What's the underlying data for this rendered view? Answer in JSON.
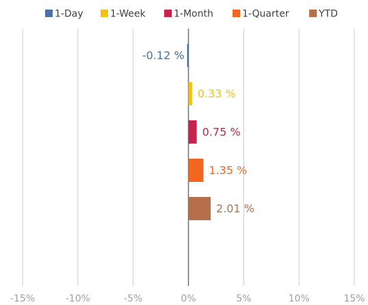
{
  "chart_data": {
    "type": "bar",
    "orientation": "horizontal",
    "series": [
      {
        "name": "1-Day",
        "color": "#4a70a8",
        "values": [
          -0.12
        ],
        "value_labels": [
          "-0.12 %"
        ]
      },
      {
        "name": "1-Week",
        "color": "#f5c212",
        "values": [
          0.33
        ],
        "value_labels": [
          "0.33 %"
        ]
      },
      {
        "name": "1-Month",
        "color": "#c8234f",
        "values": [
          0.75
        ],
        "value_labels": [
          "0.75 %"
        ]
      },
      {
        "name": "1-Quarter",
        "color": "#f2661f",
        "values": [
          1.35
        ],
        "value_labels": [
          "1.35 %"
        ]
      },
      {
        "name": "YTD",
        "color": "#b5704b",
        "values": [
          2.01
        ],
        "value_labels": [
          "2.01 %"
        ]
      }
    ],
    "xlim": [
      -15,
      15
    ],
    "xticks": [
      {
        "value": -15,
        "label": "-15%"
      },
      {
        "value": -10,
        "label": "-10%"
      },
      {
        "value": -5,
        "label": "-5%"
      },
      {
        "value": 0,
        "label": "0%"
      },
      {
        "value": 5,
        "label": "5%"
      },
      {
        "value": 10,
        "label": "10%"
      },
      {
        "value": 15,
        "label": "15%"
      }
    ],
    "grid": true,
    "legend": "top"
  }
}
